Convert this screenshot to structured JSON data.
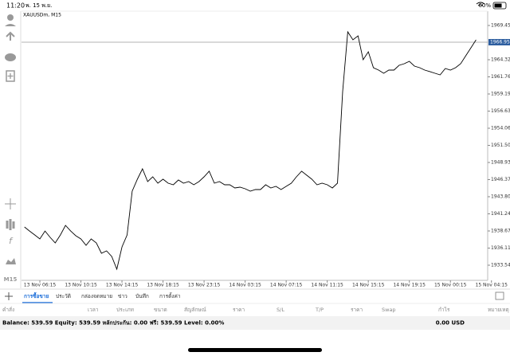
{
  "status_bar": {
    "time": "11:20",
    "date": "พ. 15 พ.ย.",
    "battery": "60%"
  },
  "sidebar": {
    "timeframe": "M15"
  },
  "chart_data": {
    "type": "line",
    "title": "XAUUSDm, M15",
    "color": "#000000",
    "categories": [
      null,
      null,
      null,
      "13 Nov 06:15",
      null,
      null,
      null,
      null,
      null,
      null,
      null,
      "13 Nov 10:15",
      null,
      null,
      null,
      null,
      null,
      null,
      null,
      "13 Nov 14:15",
      null,
      null,
      null,
      null,
      null,
      null,
      null,
      "13 Nov 18:15",
      null,
      null,
      null,
      null,
      null,
      null,
      null,
      "13 Nov 23:15",
      null,
      null,
      null,
      null,
      null,
      null,
      null,
      "14 Nov 03:15",
      null,
      null,
      null,
      null,
      null,
      null,
      null,
      "14 Nov 07:15",
      null,
      null,
      null,
      null,
      null,
      null,
      null,
      "14 Nov 11:15",
      null,
      null,
      null,
      null,
      null,
      null,
      null,
      "14 Nov 15:15",
      null,
      null,
      null,
      null,
      null,
      null,
      null,
      "14 Nov 19:15",
      null,
      null,
      null,
      null,
      null,
      null,
      null,
      "15 Nov 00:15",
      null,
      null,
      null,
      null,
      null,
      null,
      null,
      "15 Nov 04:15"
    ],
    "values": [
      1939.27,
      1938.67,
      1938.08,
      1937.48,
      1938.67,
      1937.72,
      1936.89,
      1938.08,
      1939.51,
      1938.67,
      1937.96,
      1937.48,
      1936.53,
      1937.48,
      1936.89,
      1935.34,
      1935.69,
      1934.86,
      1932.95,
      1936.29,
      1938.08,
      1944.64,
      1946.43,
      1947.98,
      1946.07,
      1946.79,
      1945.83,
      1946.43,
      1945.83,
      1945.59,
      1946.31,
      1945.83,
      1946.07,
      1945.59,
      1946.07,
      1946.79,
      1947.62,
      1945.83,
      1946.07,
      1945.59,
      1945.59,
      1945.12,
      1945.24,
      1945.0,
      1944.64,
      1944.88,
      1944.88,
      1945.59,
      1945.12,
      1945.36,
      1944.88,
      1945.36,
      1945.83,
      1946.79,
      1947.62,
      1947.03,
      1946.43,
      1945.59,
      1945.83,
      1945.59,
      1945.12,
      1945.83,
      1959.55,
      1968.5,
      1967.31,
      1967.9,
      1964.32,
      1965.52,
      1963.13,
      1962.77,
      1962.3,
      1962.77,
      1962.77,
      1963.49,
      1963.73,
      1964.09,
      1963.37,
      1963.13,
      1962.77,
      1962.54,
      1962.3,
      1962.06,
      1963.01,
      1962.77,
      1963.13,
      1963.73,
      1964.92,
      1966.11,
      1967.31,
      null,
      null,
      null
    ],
    "ylim": [
      1931.28,
      1971.6
    ],
    "yticks": [
      1969.455,
      1964.325,
      {
        "value": 1961.76,
        "label": "1961.760"
      },
      1959.195,
      {
        "value": 1956.63,
        "label": "1956.630"
      },
      1954.065,
      {
        "value": 1951.5,
        "label": "1951.500"
      },
      1948.935,
      {
        "value": 1946.37,
        "label": "1946.370"
      },
      1943.805,
      {
        "value": 1941.24,
        "label": "1941.240"
      },
      1938.675,
      {
        "value": 1936.11,
        "label": "1936.110"
      },
      1933.545
    ],
    "current_price": {
      "value": 1966.95,
      "label": "1966.950"
    },
    "grid": false
  },
  "tabs": [
    "การซื้อขาย",
    "ประวัติ",
    "กล่องจดหมาย",
    "ข่าว",
    "บันทึก",
    "การตั้งค่า"
  ],
  "columns": [
    "คำสั่ง",
    "เวลา",
    "ประเภท",
    "ขนาด",
    "สัญลักษณ์",
    "ราคา",
    "S/L",
    "T/P",
    "ราคา",
    "Swap",
    "กำไร",
    "หมายเหตุ"
  ],
  "balance_bar": {
    "summary": "Balance: 539.59 Equity: 539.59 หลักประกัน: 0.00 ฟรี: 539.59 Level: 0.00%",
    "total": "0.00 USD"
  }
}
